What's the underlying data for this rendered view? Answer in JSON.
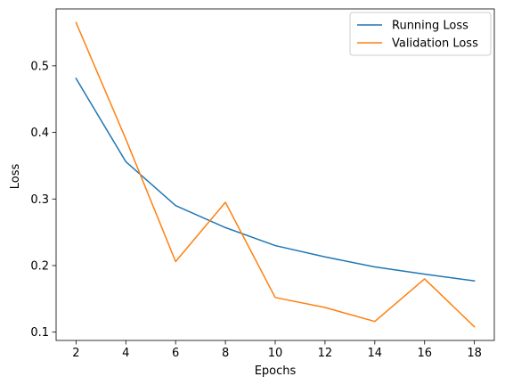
{
  "chart_data": {
    "type": "line",
    "title": "",
    "xlabel": "Epochs",
    "ylabel": "Loss",
    "xlim": [
      1.2,
      18.8
    ],
    "ylim": [
      0.0875,
      0.5855
    ],
    "xticks": [
      2,
      4,
      6,
      8,
      10,
      12,
      14,
      16,
      18
    ],
    "xtick_labels": [
      "2",
      "4",
      "6",
      "8",
      "10",
      "12",
      "14",
      "16",
      "18"
    ],
    "yticks": [
      0.1,
      0.2,
      0.3,
      0.4,
      0.5
    ],
    "ytick_labels": [
      "0.1",
      "0.2",
      "0.3",
      "0.4",
      "0.5"
    ],
    "grid": false,
    "legend": "top-right",
    "x": [
      2,
      4,
      6,
      8,
      10,
      12,
      14,
      16,
      18
    ],
    "series": [
      {
        "name": "Running Loss",
        "color": "#1f77b4",
        "values": [
          0.481,
          0.356,
          0.29,
          0.257,
          0.23,
          0.213,
          0.198,
          0.187,
          0.177
        ]
      },
      {
        "name": "Validation Loss",
        "color": "#ff7f0e",
        "values": [
          0.565,
          0.39,
          0.206,
          0.295,
          0.152,
          0.137,
          0.116,
          0.18,
          0.108
        ]
      }
    ]
  }
}
